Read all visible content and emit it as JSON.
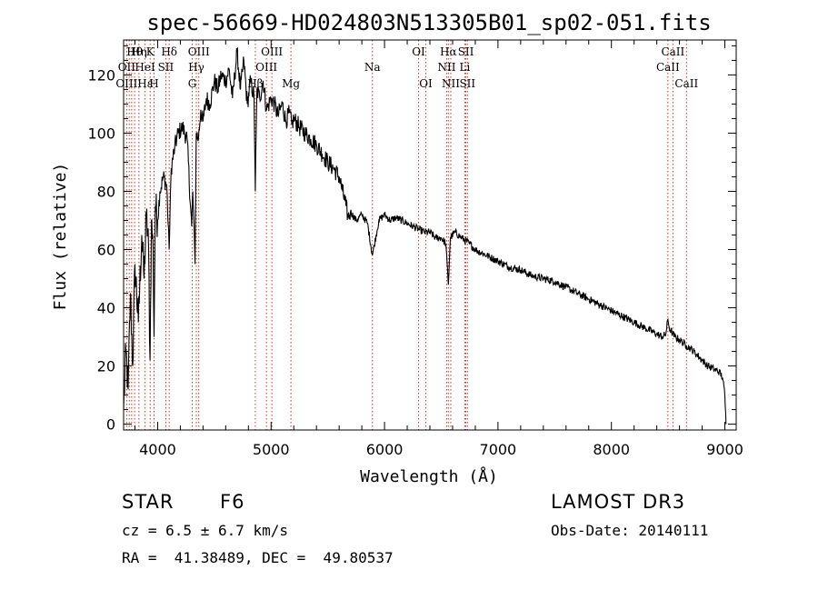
{
  "chart_data": {
    "type": "line",
    "title": "spec-56669-HD024803N513305B01_sp02-051.fits",
    "xlabel": "Wavelength (Å)",
    "ylabel": "Flux (relative)",
    "xlim": [
      3700,
      9100
    ],
    "ylim": [
      -2,
      132
    ],
    "x_ticks": [
      4000,
      5000,
      6000,
      7000,
      8000,
      9000
    ],
    "y_ticks": [
      0,
      20,
      40,
      60,
      80,
      100,
      120
    ],
    "grid": false,
    "series": [
      {
        "name": "flux",
        "x": [
          3700,
          3720,
          3740,
          3760,
          3780,
          3800,
          3830,
          3860,
          3880,
          3900,
          3920,
          3933,
          3945,
          3960,
          3968,
          3980,
          4000,
          4020,
          4050,
          4080,
          4101,
          4120,
          4150,
          4180,
          4220,
          4260,
          4290,
          4300,
          4310,
          4330,
          4340,
          4360,
          4380,
          4400,
          4430,
          4460,
          4500,
          4530,
          4560,
          4600,
          4630,
          4660,
          4700,
          4730,
          4760,
          4790,
          4820,
          4850,
          4861,
          4875,
          4900,
          4930,
          4960,
          5000,
          5030,
          5060,
          5100,
          5130,
          5160,
          5183,
          5200,
          5250,
          5300,
          5350,
          5400,
          5450,
          5500,
          5550,
          5600,
          5630,
          5660,
          5680,
          5700,
          5750,
          5800,
          5850,
          5893,
          5950,
          6000,
          6050,
          6100,
          6150,
          6200,
          6250,
          6300,
          6350,
          6400,
          6450,
          6500,
          6540,
          6563,
          6580,
          6620,
          6680,
          6750,
          6800,
          6900,
          7000,
          7100,
          7200,
          7300,
          7400,
          7500,
          7600,
          7700,
          7800,
          7900,
          8000,
          8100,
          8200,
          8300,
          8400,
          8450,
          8480,
          8498,
          8510,
          8542,
          8560,
          8600,
          8662,
          8700,
          8750,
          8800,
          8850,
          8900,
          8950,
          8980,
          9000,
          9010
        ],
        "values": [
          5,
          25,
          12,
          45,
          20,
          55,
          35,
          65,
          50,
          72,
          60,
          22,
          70,
          60,
          30,
          75,
          70,
          80,
          85,
          82,
          60,
          88,
          95,
          100,
          102,
          98,
          75,
          68,
          80,
          55,
          100,
          98,
          108,
          104,
          112,
          110,
          118,
          115,
          120,
          118,
          122,
          112,
          128,
          115,
          125,
          110,
          118,
          112,
          80,
          115,
          112,
          118,
          108,
          112,
          110,
          106,
          110,
          104,
          107,
          103,
          105,
          102,
          100,
          98,
          96,
          93,
          90,
          88,
          85,
          80,
          75,
          71,
          73,
          70,
          72,
          69,
          58,
          70,
          72,
          70,
          71,
          70,
          69,
          68,
          67,
          66,
          66,
          64,
          64,
          62,
          48,
          64,
          66,
          64,
          62,
          60,
          58,
          56,
          54,
          53,
          51,
          50,
          49,
          47,
          45,
          43,
          41,
          39,
          37,
          35,
          33,
          31,
          30,
          31,
          36,
          33,
          31,
          30,
          29,
          27,
          26,
          24,
          22,
          20,
          19,
          18,
          16,
          10,
          0
        ]
      }
    ],
    "line_labels": [
      {
        "text": "Hθ",
        "x": 3797,
        "row": 0
      },
      {
        "text": "OII",
        "x": 3727,
        "row": 1
      },
      {
        "text": "OIII",
        "x": 3727,
        "row": 2
      },
      {
        "text": "Hη",
        "x": 3835,
        "row": 0
      },
      {
        "text": "HeI",
        "x": 3889,
        "row": 1
      },
      {
        "text": "Hε",
        "x": 3889,
        "row": 2
      },
      {
        "text": "K",
        "x": 3934,
        "row": 0
      },
      {
        "text": "SII",
        "x": 4072,
        "row": 1
      },
      {
        "text": "H",
        "x": 3968,
        "row": 2
      },
      {
        "text": "Hδ",
        "x": 4102,
        "row": 0
      },
      {
        "text": "OIII",
        "x": 4363,
        "row": 0
      },
      {
        "text": "Hγ",
        "x": 4341,
        "row": 1
      },
      {
        "text": "G",
        "x": 4305,
        "row": 2
      },
      {
        "text": "Hβ",
        "x": 4861,
        "row": 2
      },
      {
        "text": "OIII",
        "x": 5007,
        "row": 0
      },
      {
        "text": "OIII",
        "x": 4959,
        "row": 1
      },
      {
        "text": "Mg",
        "x": 5175,
        "row": 2
      },
      {
        "text": "Na",
        "x": 5893,
        "row": 1
      },
      {
        "text": "OI",
        "x": 6300,
        "row": 0
      },
      {
        "text": "OI",
        "x": 6364,
        "row": 2
      },
      {
        "text": "Hα",
        "x": 6563,
        "row": 0
      },
      {
        "text": "NII",
        "x": 6548,
        "row": 1
      },
      {
        "text": "NII",
        "x": 6584,
        "row": 2
      },
      {
        "text": "SII",
        "x": 6717,
        "row": 0
      },
      {
        "text": "Li",
        "x": 6708,
        "row": 1
      },
      {
        "text": "SII",
        "x": 6731,
        "row": 2
      },
      {
        "text": "CaII",
        "x": 8542,
        "row": 0
      },
      {
        "text": "CaII",
        "x": 8498,
        "row": 1
      },
      {
        "text": "CaII",
        "x": 8662,
        "row": 2
      }
    ],
    "line_markers": [
      3727,
      3750,
      3771,
      3797,
      3835,
      3889,
      3934,
      3968,
      4072,
      4102,
      4305,
      4341,
      4363,
      4861,
      4959,
      5007,
      5175,
      5893,
      6300,
      6364,
      6548,
      6563,
      6584,
      6708,
      6717,
      6731,
      8498,
      8542,
      8662
    ]
  },
  "info": {
    "object_class": "STAR",
    "subclass": "F6",
    "survey": "LAMOST DR3",
    "cz": "cz = 6.5 ± 6.7 km/s",
    "obs_date": "Obs-Date: 20140111",
    "coords": "RA =  41.38489, DEC =  49.80537"
  }
}
